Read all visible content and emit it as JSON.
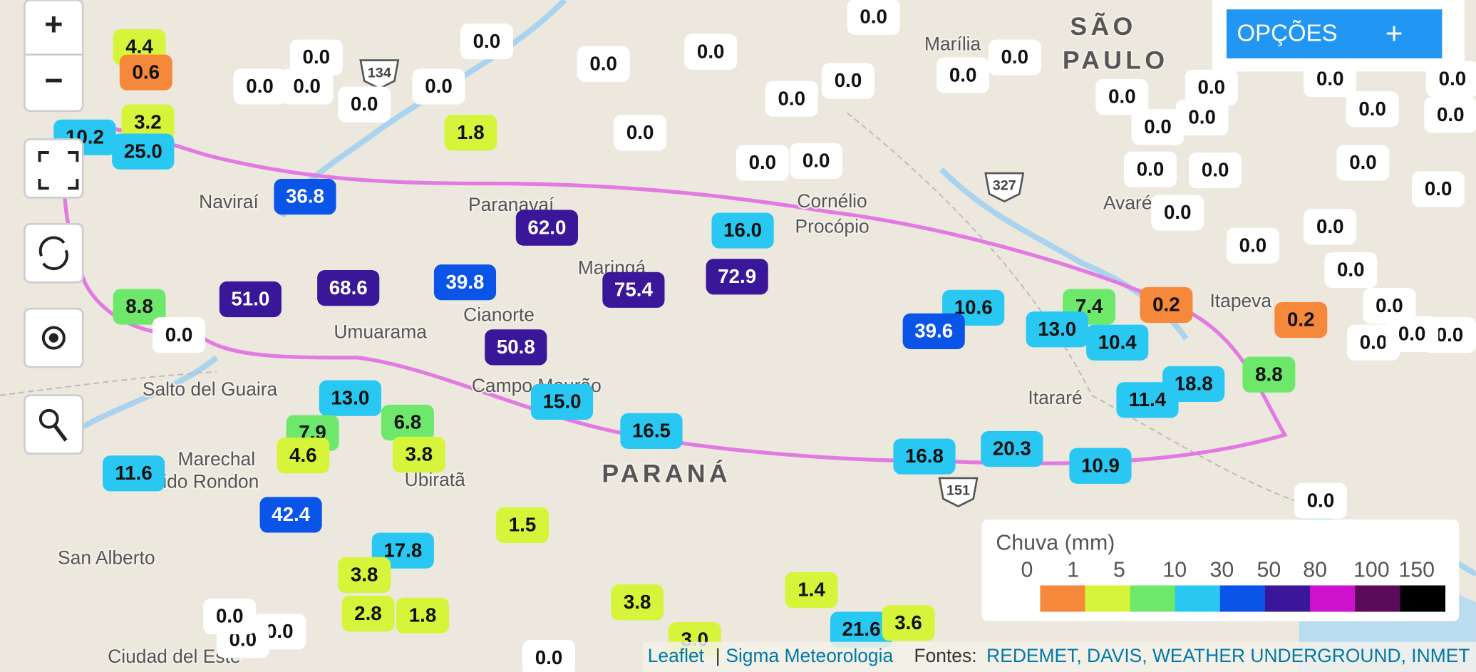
{
  "controls": {
    "zoom_in": "+",
    "zoom_out": "−"
  },
  "options_button": {
    "label": "OPÇÕES",
    "icon": "+"
  },
  "places": [
    "SÃO",
    "PAULO",
    "Marília",
    "Naviraí",
    "Paranavaí",
    "Maringá",
    "Cianorte",
    "Umuarama",
    "Salto del Guaira",
    "Campo Mourão",
    "Cornélio",
    "Procópio",
    "Avaré",
    "Itararé",
    "Itapeva",
    "PARANÁ",
    "Marechal",
    "Candido Rondon",
    "Ubiratã",
    "San Alberto",
    "Ciudad del Este"
  ],
  "roads": [
    "134",
    "327",
    "151"
  ],
  "markers": [
    "4.4",
    "0.6",
    "3.2",
    "10.2",
    "25.0",
    "0.0",
    "0.0",
    "0.0",
    "0.0",
    "0.0",
    "0.0",
    "0.0",
    "0.0",
    "0.0",
    "0.0",
    "0.0",
    "0.0",
    "0.0",
    "0.0",
    "0.0",
    "0.0",
    "0.0",
    "0.0",
    "0.0",
    "0.0",
    "0.0",
    "0.0",
    "0.0",
    "0.0",
    "0.0",
    "0.0",
    "0.0",
    "0.0",
    "0.0",
    "0.0",
    "0.0",
    "0.0",
    "0.0",
    "0.2",
    "0.2",
    "8.8",
    "18.8",
    "11.4",
    "10.4",
    "7.4",
    "13.0",
    "10.6",
    "39.6",
    "20.3",
    "16.8",
    "10.9",
    "0.0",
    "1.8",
    "0.0",
    "0.0",
    "0.0",
    "36.8",
    "62.0",
    "16.0",
    "72.9",
    "75.4",
    "39.8",
    "68.6",
    "51.0",
    "50.8",
    "8.8",
    "0.0",
    "13.0",
    "6.8",
    "7.9",
    "4.6",
    "3.8",
    "15.0",
    "16.5",
    "11.6",
    "42.4",
    "17.8",
    "1.5",
    "3.8",
    "2.8",
    "1.8",
    "3.8",
    "1.4",
    "21.6",
    "3.6",
    "3.0",
    "0.0",
    "0.0",
    "0.0",
    "0.0"
  ],
  "legend": {
    "title": "Chuva (mm)",
    "ticks": [
      0,
      1,
      5,
      10,
      30,
      50,
      80,
      100,
      150
    ],
    "colors": [
      "#f5883a",
      "#d6f53a",
      "#6de86a",
      "#29c8f2",
      "#0a55e8",
      "#3a1699",
      "#cc12cc",
      "#5c0a5c",
      "#000000"
    ]
  },
  "attribution": {
    "leaflet": "Leaflet",
    "separator": "|",
    "sigma": "Sigma Meteorologia",
    "sources_label": "Fontes:",
    "sources": "REDEMET, DAVIS, WEATHER UNDERGROUND, INMET"
  }
}
